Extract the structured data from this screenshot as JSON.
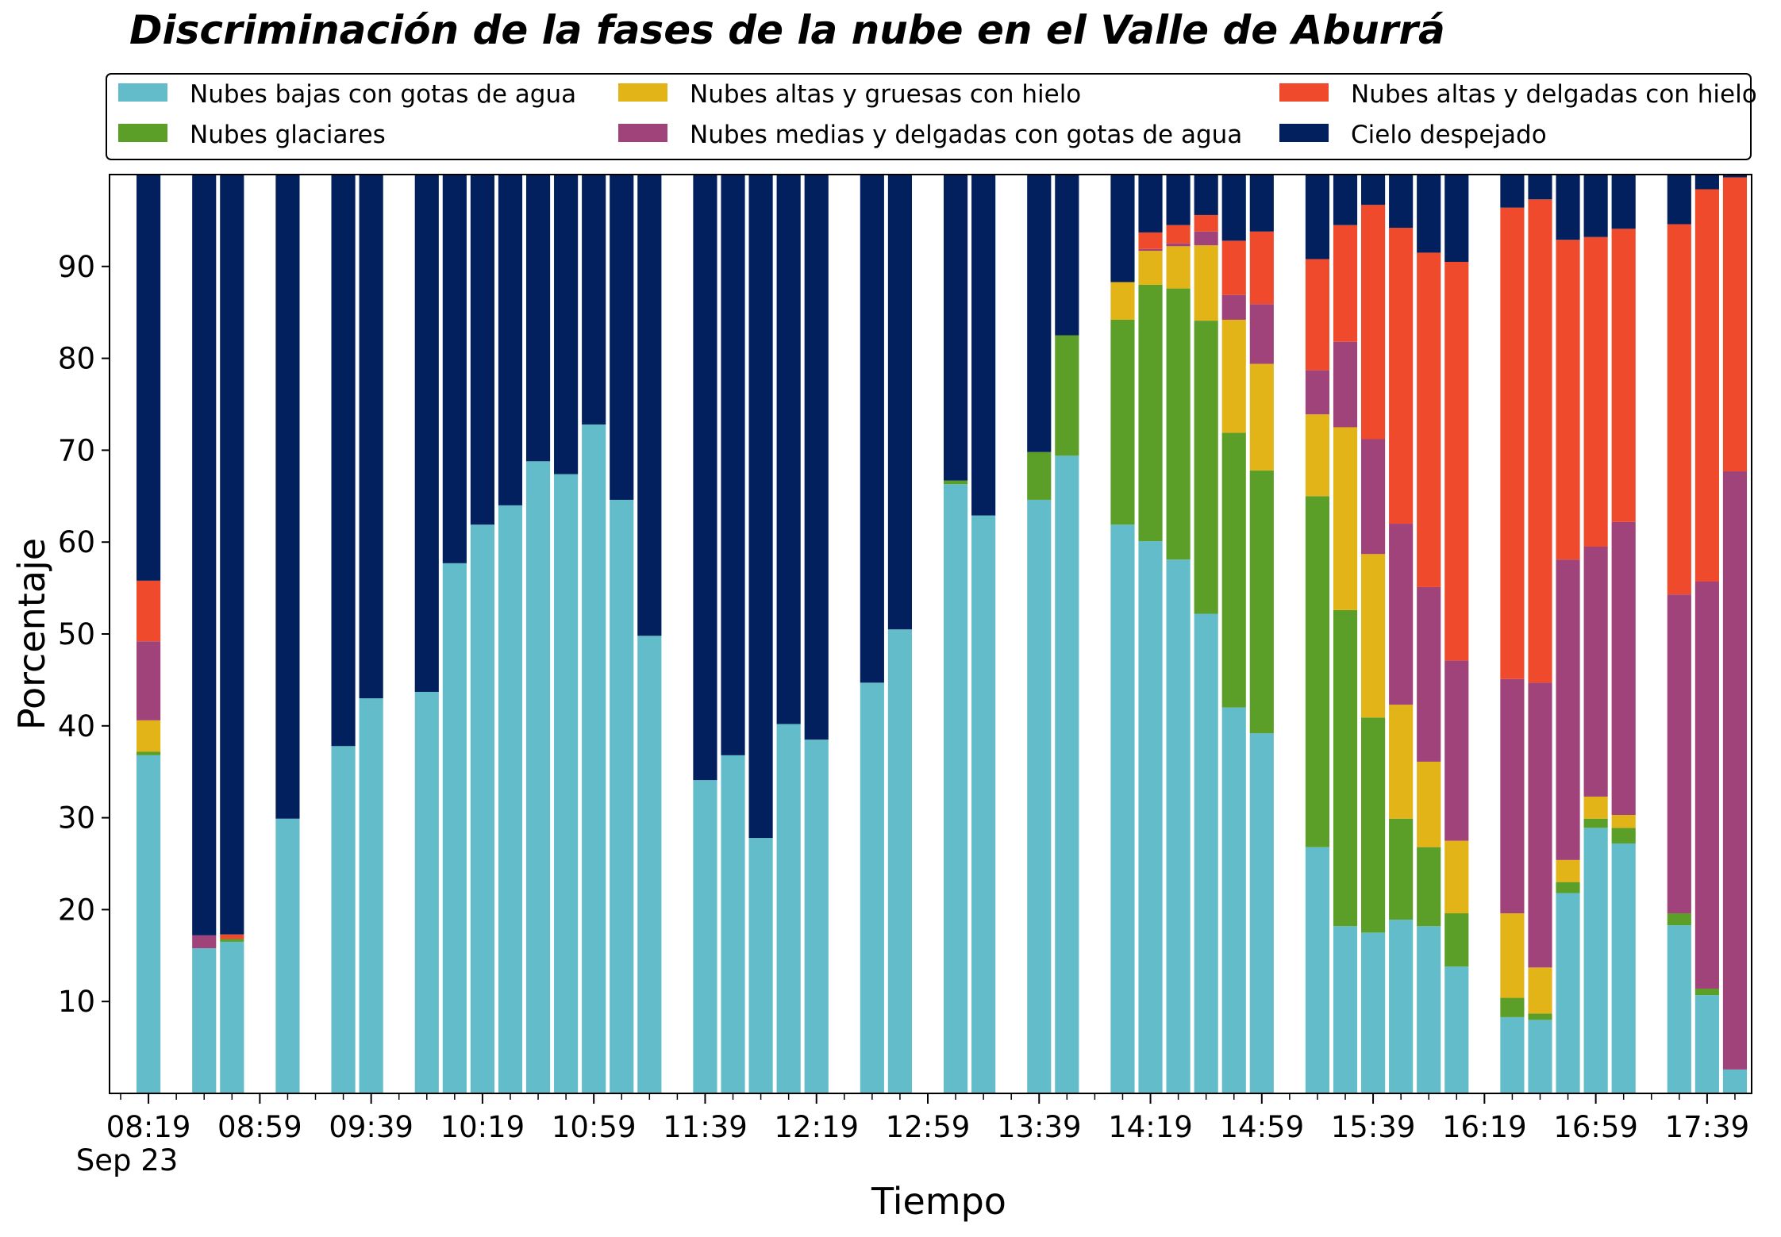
{
  "chart_data": {
    "type": "bar",
    "stacked": true,
    "title": "Discriminación de la fases de la nube en el Valle de Aburrá",
    "xlabel": "Tiempo",
    "ylabel": "Porcentaje",
    "ylim": [
      0,
      100
    ],
    "yticks": [
      10,
      20,
      30,
      40,
      50,
      60,
      70,
      80,
      90
    ],
    "x_range_minutes": [
      485,
      1075
    ],
    "x_major_ticks": [
      {
        "minute": 499,
        "label": "08:19"
      },
      {
        "minute": 539,
        "label": "08:59"
      },
      {
        "minute": 579,
        "label": "09:39"
      },
      {
        "minute": 619,
        "label": "10:19"
      },
      {
        "minute": 659,
        "label": "10:59"
      },
      {
        "minute": 699,
        "label": "11:39"
      },
      {
        "minute": 739,
        "label": "12:19"
      },
      {
        "minute": 779,
        "label": "12:59"
      },
      {
        "minute": 819,
        "label": "13:39"
      },
      {
        "minute": 859,
        "label": "14:19"
      },
      {
        "minute": 899,
        "label": "14:59"
      },
      {
        "minute": 939,
        "label": "15:39"
      },
      {
        "minute": 979,
        "label": "16:19"
      },
      {
        "minute": 1019,
        "label": "16:59"
      },
      {
        "minute": 1059,
        "label": "17:39"
      }
    ],
    "x_date_label": "Sep 23",
    "x_minor_tick_step": 10,
    "grid": false,
    "legend_position": "top",
    "series": [
      {
        "name": "Nubes bajas con gotas de agua",
        "color": "#63BCC9"
      },
      {
        "name": "Nubes glaciares",
        "color": "#5B9E28"
      },
      {
        "name": "Nubes altas y gruesas con hielo",
        "color": "#E2B418"
      },
      {
        "name": "Nubes medias y delgadas con gotas de agua",
        "color": "#A0437A"
      },
      {
        "name": "Nubes altas y delgadas con hielo",
        "color": "#EE4A2B"
      },
      {
        "name": "Cielo despejado",
        "color": "#03205E"
      }
    ],
    "bars": [
      {
        "time": "08:19",
        "values": [
          36.8,
          0.4,
          3.4,
          8.6,
          6.6,
          44.2
        ]
      },
      {
        "time": "08:39",
        "values": [
          15.8,
          0,
          0,
          1.4,
          0,
          82.8
        ]
      },
      {
        "time": "08:49",
        "values": [
          16.5,
          0.3,
          0,
          0,
          0.5,
          82.7
        ]
      },
      {
        "time": "09:09",
        "values": [
          29.9,
          0,
          0,
          0,
          0,
          70.1
        ]
      },
      {
        "time": "09:29",
        "values": [
          37.8,
          0,
          0,
          0,
          0,
          62.2
        ]
      },
      {
        "time": "09:39",
        "values": [
          43.0,
          0,
          0,
          0,
          0,
          57.0
        ]
      },
      {
        "time": "09:59",
        "values": [
          43.7,
          0,
          0,
          0,
          0,
          56.3
        ]
      },
      {
        "time": "10:09",
        "values": [
          57.7,
          0,
          0,
          0,
          0,
          42.3
        ]
      },
      {
        "time": "10:19",
        "values": [
          61.9,
          0,
          0,
          0,
          0,
          38.1
        ]
      },
      {
        "time": "10:29",
        "values": [
          64.0,
          0,
          0,
          0,
          0,
          36.0
        ]
      },
      {
        "time": "10:39",
        "values": [
          68.8,
          0,
          0,
          0,
          0,
          31.2
        ]
      },
      {
        "time": "10:49",
        "values": [
          67.4,
          0,
          0,
          0,
          0,
          32.6
        ]
      },
      {
        "time": "10:59",
        "values": [
          72.8,
          0,
          0,
          0,
          0,
          27.2
        ]
      },
      {
        "time": "11:09",
        "values": [
          64.6,
          0,
          0,
          0,
          0,
          35.4
        ]
      },
      {
        "time": "11:19",
        "values": [
          49.8,
          0,
          0,
          0,
          0,
          50.2
        ]
      },
      {
        "time": "11:39",
        "values": [
          34.1,
          0,
          0,
          0,
          0,
          65.9
        ]
      },
      {
        "time": "11:49",
        "values": [
          36.8,
          0,
          0,
          0,
          0,
          63.2
        ]
      },
      {
        "time": "11:59",
        "values": [
          27.8,
          0,
          0,
          0,
          0,
          72.2
        ]
      },
      {
        "time": "12:09",
        "values": [
          40.2,
          0,
          0,
          0,
          0,
          59.8
        ]
      },
      {
        "time": "12:19",
        "values": [
          38.5,
          0,
          0,
          0,
          0,
          61.5
        ]
      },
      {
        "time": "12:39",
        "values": [
          44.7,
          0,
          0,
          0,
          0,
          55.3
        ]
      },
      {
        "time": "12:49",
        "values": [
          50.5,
          0,
          0,
          0,
          0,
          49.5
        ]
      },
      {
        "time": "13:09",
        "values": [
          66.3,
          0.4,
          0,
          0,
          0,
          33.3
        ]
      },
      {
        "time": "13:19",
        "values": [
          62.9,
          0,
          0,
          0,
          0,
          37.1
        ]
      },
      {
        "time": "13:39",
        "values": [
          64.6,
          5.2,
          0,
          0,
          0,
          30.2
        ]
      },
      {
        "time": "13:49",
        "values": [
          69.4,
          13.1,
          0,
          0,
          0,
          17.5
        ]
      },
      {
        "time": "14:09",
        "values": [
          61.9,
          22.3,
          4.1,
          0,
          0,
          11.7
        ]
      },
      {
        "time": "14:19",
        "values": [
          60.1,
          27.9,
          3.7,
          0.2,
          1.8,
          6.3
        ]
      },
      {
        "time": "14:29",
        "values": [
          58.1,
          29.5,
          4.6,
          0.3,
          2.0,
          5.5
        ]
      },
      {
        "time": "14:39",
        "values": [
          52.2,
          31.9,
          8.2,
          1.5,
          1.8,
          4.4
        ]
      },
      {
        "time": "14:49",
        "values": [
          42.0,
          29.9,
          12.3,
          2.7,
          5.9,
          7.2
        ]
      },
      {
        "time": "14:59",
        "values": [
          39.2,
          28.6,
          11.6,
          6.5,
          7.9,
          6.2
        ]
      },
      {
        "time": "15:19",
        "values": [
          26.8,
          38.2,
          8.9,
          4.8,
          12.1,
          9.2
        ]
      },
      {
        "time": "15:29",
        "values": [
          18.2,
          34.4,
          19.9,
          9.3,
          12.7,
          5.5
        ]
      },
      {
        "time": "15:39",
        "values": [
          17.5,
          23.4,
          17.8,
          12.5,
          25.5,
          3.3
        ]
      },
      {
        "time": "15:49",
        "values": [
          18.9,
          11.0,
          12.4,
          19.7,
          32.2,
          5.8
        ]
      },
      {
        "time": "15:59",
        "values": [
          18.2,
          8.6,
          9.3,
          19.0,
          36.4,
          8.5
        ]
      },
      {
        "time": "16:09",
        "values": [
          13.8,
          5.8,
          7.9,
          19.6,
          43.4,
          9.5
        ]
      },
      {
        "time": "16:29",
        "values": [
          8.3,
          2.1,
          9.2,
          25.5,
          51.3,
          3.6
        ]
      },
      {
        "time": "16:39",
        "values": [
          8.0,
          0.7,
          5.0,
          31.0,
          52.6,
          2.7
        ]
      },
      {
        "time": "16:49",
        "values": [
          21.8,
          1.2,
          2.4,
          32.7,
          34.8,
          7.1
        ]
      },
      {
        "time": "16:59",
        "values": [
          28.9,
          1.0,
          2.4,
          27.2,
          33.7,
          6.8
        ]
      },
      {
        "time": "17:09",
        "values": [
          27.2,
          1.7,
          1.4,
          31.9,
          31.9,
          5.9
        ]
      },
      {
        "time": "17:29",
        "values": [
          18.3,
          1.3,
          0,
          34.7,
          40.3,
          5.4
        ]
      },
      {
        "time": "17:39",
        "values": [
          10.7,
          0.7,
          0,
          44.3,
          42.7,
          1.6
        ]
      },
      {
        "time": "17:49",
        "values": [
          2.6,
          0,
          0,
          65.1,
          32.0,
          0.3
        ]
      }
    ]
  }
}
